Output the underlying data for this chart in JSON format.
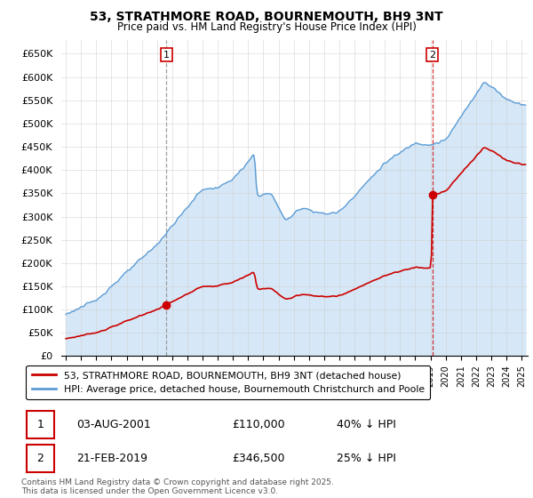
{
  "title": "53, STRATHMORE ROAD, BOURNEMOUTH, BH9 3NT",
  "subtitle": "Price paid vs. HM Land Registry's House Price Index (HPI)",
  "ylim": [
    0,
    680000
  ],
  "yticks": [
    0,
    50000,
    100000,
    150000,
    200000,
    250000,
    300000,
    350000,
    400000,
    450000,
    500000,
    550000,
    600000,
    650000
  ],
  "ytick_labels": [
    "£0",
    "£50K",
    "£100K",
    "£150K",
    "£200K",
    "£250K",
    "£300K",
    "£350K",
    "£400K",
    "£450K",
    "£500K",
    "£550K",
    "£600K",
    "£650K"
  ],
  "hpi_color": "#5b9bd5",
  "hpi_fill_color": "#d6e8f7",
  "price_color": "#cc0000",
  "sale1_date": 2001.62,
  "sale1_price": 110000,
  "sale1_label": "1",
  "sale1_vline_color": "#888888",
  "sale1_vline_style": "dashed",
  "sale2_date": 2019.12,
  "sale2_price": 346500,
  "sale2_label": "2",
  "sale2_vline_color": "#cc0000",
  "sale2_vline_style": "dashed",
  "legend_line1": "53, STRATHMORE ROAD, BOURNEMOUTH, BH9 3NT (detached house)",
  "legend_line2": "HPI: Average price, detached house, Bournemouth Christchurch and Poole",
  "footer": "Contains HM Land Registry data © Crown copyright and database right 2025.\nThis data is licensed under the Open Government Licence v3.0.",
  "background_color": "#ffffff",
  "grid_color": "#cccccc",
  "plot_bg_color": "#ffffff"
}
